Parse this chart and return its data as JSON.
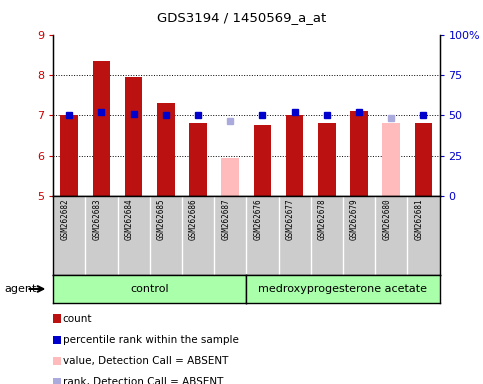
{
  "title": "GDS3194 / 1450569_a_at",
  "samples": [
    "GSM262682",
    "GSM262683",
    "GSM262684",
    "GSM262685",
    "GSM262686",
    "GSM262687",
    "GSM262676",
    "GSM262677",
    "GSM262678",
    "GSM262679",
    "GSM262680",
    "GSM262681"
  ],
  "bar_values": [
    7.0,
    8.35,
    7.95,
    7.3,
    6.8,
    5.95,
    6.75,
    7.0,
    6.8,
    7.1,
    6.8,
    6.8
  ],
  "bar_colors": [
    "#bb1111",
    "#bb1111",
    "#bb1111",
    "#bb1111",
    "#bb1111",
    "#ffbbbb",
    "#bb1111",
    "#bb1111",
    "#bb1111",
    "#bb1111",
    "#ffbbbb",
    "#bb1111"
  ],
  "dot_values": [
    50.0,
    52.0,
    51.0,
    50.0,
    50.0,
    46.5,
    50.0,
    52.0,
    50.0,
    52.0,
    48.5,
    50.0
  ],
  "dot_colors": [
    "#0000cc",
    "#0000cc",
    "#0000cc",
    "#0000cc",
    "#0000cc",
    "#aaaadd",
    "#0000cc",
    "#0000cc",
    "#0000cc",
    "#0000cc",
    "#aaaadd",
    "#0000cc"
  ],
  "ylim_left": [
    5,
    9
  ],
  "ylim_right": [
    0,
    100
  ],
  "yticks_left": [
    5,
    6,
    7,
    8,
    9
  ],
  "yticks_right": [
    0,
    25,
    50,
    75,
    100
  ],
  "ytick_labels_right": [
    "0",
    "25",
    "50",
    "75",
    "100%"
  ],
  "bar_bottom": 5,
  "group1_label": "control",
  "group2_label": "medroxyprogesterone acetate",
  "agent_label": "agent",
  "legend_items": [
    {
      "color": "#bb1111",
      "label": "count",
      "marker": "square"
    },
    {
      "color": "#0000cc",
      "label": "percentile rank within the sample",
      "marker": "square"
    },
    {
      "color": "#ffbbbb",
      "label": "value, Detection Call = ABSENT",
      "marker": "square"
    },
    {
      "color": "#aaaadd",
      "label": "rank, Detection Call = ABSENT",
      "marker": "square"
    }
  ],
  "bg_color_plot": "#ffffff",
  "bg_color_xaxis": "#cccccc",
  "bg_color_group": "#aaffaa",
  "left_tick_color": "#cc0000",
  "right_tick_color": "#0000cc",
  "n_samples": 12,
  "n_group1": 6,
  "n_group2": 6
}
